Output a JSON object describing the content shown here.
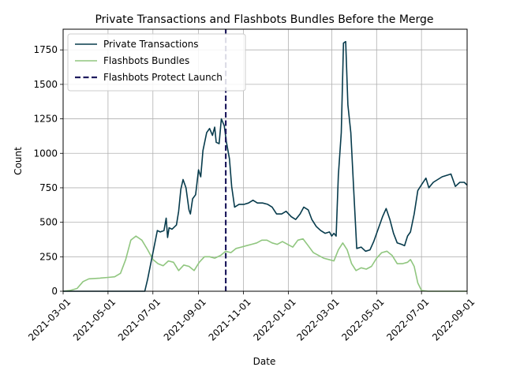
{
  "chart_data": {
    "type": "line",
    "title": "Private Transactions and Flashbots Bundles Before the Merge",
    "xlabel": "Date",
    "ylabel": "Count",
    "xlim": [
      "2021-03-01",
      "2022-09-01"
    ],
    "ylim": [
      0,
      1900
    ],
    "x_ticks": [
      "2021-03-01",
      "2021-05-01",
      "2021-07-01",
      "2021-09-01",
      "2021-11-01",
      "2022-01-01",
      "2022-03-01",
      "2022-05-01",
      "2022-07-01",
      "2022-09-01"
    ],
    "y_ticks": [
      0,
      250,
      500,
      750,
      1000,
      1250,
      1500,
      1750
    ],
    "grid": true,
    "legend_position": "upper-left",
    "series": [
      {
        "name": "Private Transactions",
        "color": "#073b4c",
        "style": "solid",
        "points": [
          [
            "2021-03-01",
            0
          ],
          [
            "2021-04-01",
            0
          ],
          [
            "2021-05-01",
            0
          ],
          [
            "2021-06-01",
            0
          ],
          [
            "2021-06-20",
            0
          ],
          [
            "2021-06-24",
            90
          ],
          [
            "2021-06-28",
            200
          ],
          [
            "2021-07-03",
            330
          ],
          [
            "2021-07-07",
            440
          ],
          [
            "2021-07-11",
            430
          ],
          [
            "2021-07-16",
            440
          ],
          [
            "2021-07-19",
            530
          ],
          [
            "2021-07-21",
            390
          ],
          [
            "2021-07-23",
            460
          ],
          [
            "2021-07-27",
            450
          ],
          [
            "2021-08-02",
            480
          ],
          [
            "2021-08-05",
            580
          ],
          [
            "2021-08-08",
            740
          ],
          [
            "2021-08-11",
            810
          ],
          [
            "2021-08-15",
            750
          ],
          [
            "2021-08-19",
            590
          ],
          [
            "2021-08-21",
            560
          ],
          [
            "2021-08-24",
            670
          ],
          [
            "2021-08-28",
            700
          ],
          [
            "2021-09-01",
            880
          ],
          [
            "2021-09-04",
            830
          ],
          [
            "2021-09-07",
            1020
          ],
          [
            "2021-09-12",
            1150
          ],
          [
            "2021-09-16",
            1180
          ],
          [
            "2021-09-20",
            1130
          ],
          [
            "2021-09-23",
            1190
          ],
          [
            "2021-09-25",
            1080
          ],
          [
            "2021-09-29",
            1070
          ],
          [
            "2021-10-02",
            1250
          ],
          [
            "2021-10-06",
            1200
          ],
          [
            "2021-10-09",
            1080
          ],
          [
            "2021-10-13",
            960
          ],
          [
            "2021-10-16",
            760
          ],
          [
            "2021-10-20",
            610
          ],
          [
            "2021-10-26",
            630
          ],
          [
            "2021-11-02",
            630
          ],
          [
            "2021-11-08",
            640
          ],
          [
            "2021-11-14",
            660
          ],
          [
            "2021-11-20",
            640
          ],
          [
            "2021-11-27",
            640
          ],
          [
            "2021-12-04",
            630
          ],
          [
            "2021-12-10",
            610
          ],
          [
            "2021-12-16",
            560
          ],
          [
            "2021-12-23",
            560
          ],
          [
            "2021-12-29",
            580
          ],
          [
            "2022-01-05",
            540
          ],
          [
            "2022-01-11",
            520
          ],
          [
            "2022-01-17",
            560
          ],
          [
            "2022-01-22",
            610
          ],
          [
            "2022-01-28",
            590
          ],
          [
            "2022-02-02",
            520
          ],
          [
            "2022-02-08",
            470
          ],
          [
            "2022-02-14",
            440
          ],
          [
            "2022-02-20",
            420
          ],
          [
            "2022-02-26",
            430
          ],
          [
            "2022-03-01",
            400
          ],
          [
            "2022-03-04",
            420
          ],
          [
            "2022-03-07",
            400
          ],
          [
            "2022-03-10",
            840
          ],
          [
            "2022-03-14",
            1150
          ],
          [
            "2022-03-17",
            1800
          ],
          [
            "2022-03-20",
            1810
          ],
          [
            "2022-03-23",
            1350
          ],
          [
            "2022-03-27",
            1150
          ],
          [
            "2022-03-31",
            720
          ],
          [
            "2022-04-04",
            310
          ],
          [
            "2022-04-10",
            320
          ],
          [
            "2022-04-16",
            290
          ],
          [
            "2022-04-22",
            300
          ],
          [
            "2022-04-27",
            360
          ],
          [
            "2022-05-03",
            450
          ],
          [
            "2022-05-09",
            540
          ],
          [
            "2022-05-14",
            600
          ],
          [
            "2022-05-19",
            520
          ],
          [
            "2022-05-24",
            420
          ],
          [
            "2022-05-29",
            350
          ],
          [
            "2022-06-04",
            340
          ],
          [
            "2022-06-08",
            330
          ],
          [
            "2022-06-12",
            400
          ],
          [
            "2022-06-16",
            430
          ],
          [
            "2022-06-21",
            560
          ],
          [
            "2022-06-26",
            730
          ],
          [
            "2022-07-02",
            780
          ],
          [
            "2022-07-07",
            820
          ],
          [
            "2022-07-11",
            750
          ],
          [
            "2022-07-17",
            790
          ],
          [
            "2022-07-23",
            810
          ],
          [
            "2022-07-29",
            830
          ],
          [
            "2022-08-04",
            840
          ],
          [
            "2022-08-10",
            850
          ],
          [
            "2022-08-16",
            760
          ],
          [
            "2022-08-22",
            790
          ],
          [
            "2022-08-28",
            790
          ],
          [
            "2022-09-01",
            770
          ]
        ]
      },
      {
        "name": "Flashbots Bundles",
        "color": "#90c67f",
        "style": "solid",
        "points": [
          [
            "2021-03-01",
            0
          ],
          [
            "2021-03-10",
            5
          ],
          [
            "2021-03-20",
            20
          ],
          [
            "2021-03-28",
            70
          ],
          [
            "2021-04-05",
            90
          ],
          [
            "2021-04-20",
            95
          ],
          [
            "2021-05-01",
            100
          ],
          [
            "2021-05-10",
            105
          ],
          [
            "2021-05-18",
            130
          ],
          [
            "2021-05-25",
            230
          ],
          [
            "2021-06-01",
            370
          ],
          [
            "2021-06-08",
            400
          ],
          [
            "2021-06-16",
            370
          ],
          [
            "2021-06-24",
            300
          ],
          [
            "2021-07-01",
            230
          ],
          [
            "2021-07-08",
            200
          ],
          [
            "2021-07-15",
            185
          ],
          [
            "2021-07-22",
            220
          ],
          [
            "2021-07-29",
            210
          ],
          [
            "2021-08-05",
            150
          ],
          [
            "2021-08-12",
            190
          ],
          [
            "2021-08-19",
            180
          ],
          [
            "2021-08-26",
            150
          ],
          [
            "2021-09-02",
            210
          ],
          [
            "2021-09-09",
            250
          ],
          [
            "2021-09-16",
            250
          ],
          [
            "2021-09-23",
            240
          ],
          [
            "2021-10-01",
            260
          ],
          [
            "2021-10-08",
            290
          ],
          [
            "2021-10-15",
            280
          ],
          [
            "2021-10-22",
            310
          ],
          [
            "2021-10-29",
            320
          ],
          [
            "2021-11-05",
            330
          ],
          [
            "2021-11-12",
            340
          ],
          [
            "2021-11-19",
            350
          ],
          [
            "2021-11-26",
            370
          ],
          [
            "2021-12-03",
            370
          ],
          [
            "2021-12-10",
            350
          ],
          [
            "2021-12-17",
            340
          ],
          [
            "2021-12-24",
            360
          ],
          [
            "2021-12-31",
            340
          ],
          [
            "2022-01-07",
            320
          ],
          [
            "2022-01-14",
            370
          ],
          [
            "2022-01-21",
            380
          ],
          [
            "2022-01-28",
            330
          ],
          [
            "2022-02-04",
            280
          ],
          [
            "2022-02-11",
            260
          ],
          [
            "2022-02-18",
            240
          ],
          [
            "2022-02-25",
            230
          ],
          [
            "2022-03-04",
            220
          ],
          [
            "2022-03-10",
            300
          ],
          [
            "2022-03-16",
            350
          ],
          [
            "2022-03-22",
            300
          ],
          [
            "2022-03-28",
            200
          ],
          [
            "2022-04-03",
            150
          ],
          [
            "2022-04-10",
            170
          ],
          [
            "2022-04-17",
            160
          ],
          [
            "2022-04-24",
            180
          ],
          [
            "2022-05-01",
            240
          ],
          [
            "2022-05-08",
            280
          ],
          [
            "2022-05-15",
            290
          ],
          [
            "2022-05-22",
            260
          ],
          [
            "2022-05-29",
            200
          ],
          [
            "2022-06-05",
            200
          ],
          [
            "2022-06-12",
            210
          ],
          [
            "2022-06-16",
            230
          ],
          [
            "2022-06-21",
            180
          ],
          [
            "2022-06-26",
            60
          ],
          [
            "2022-07-01",
            5
          ],
          [
            "2022-07-10",
            0
          ],
          [
            "2022-08-01",
            0
          ],
          [
            "2022-09-01",
            0
          ]
        ]
      },
      {
        "name": "Flashbots Protect Launch",
        "color": "#1f1b5e",
        "style": "dashed",
        "vertical_line_at": "2021-10-08"
      }
    ]
  }
}
